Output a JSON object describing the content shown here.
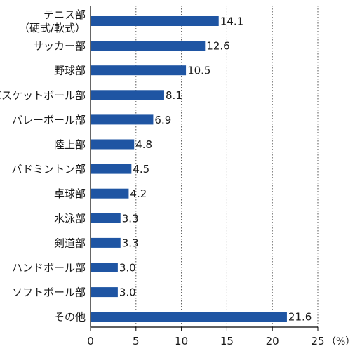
{
  "chart_data": {
    "type": "bar",
    "orientation": "horizontal",
    "categories": [
      [
        "テニス部",
        "（硬式/軟式）"
      ],
      [
        "サッカー部"
      ],
      [
        "野球部"
      ],
      [
        "バスケットボール部"
      ],
      [
        "バレーボール部"
      ],
      [
        "陸上部"
      ],
      [
        "バドミントン部"
      ],
      [
        "卓球部"
      ],
      [
        "水泳部"
      ],
      [
        "剣道部"
      ],
      [
        "ハンドボール部"
      ],
      [
        "ソフトボール部"
      ],
      [
        "その他"
      ]
    ],
    "values": [
      14.1,
      12.6,
      10.5,
      8.1,
      6.9,
      4.8,
      4.5,
      4.2,
      3.3,
      3.3,
      3.0,
      3.0,
      21.6
    ],
    "value_labels": [
      "14.1",
      "12.6",
      "10.5",
      "8.1",
      "6.9",
      "4.8",
      "4.5",
      "4.2",
      "3.3",
      "3.3",
      "3.0",
      "3.0",
      "21.6"
    ],
    "xlim": [
      0,
      25
    ],
    "xticks": [
      0,
      5,
      10,
      15,
      20,
      25
    ],
    "xtick_labels": [
      "0",
      "5",
      "10",
      "15",
      "20",
      "25"
    ],
    "unit_label": "（%）",
    "title": "",
    "xlabel": "",
    "ylabel": "",
    "grid": "vertical-dotted",
    "bar_color": "#1f55a3",
    "axis_color": "#000000",
    "grid_color": "#555555"
  }
}
